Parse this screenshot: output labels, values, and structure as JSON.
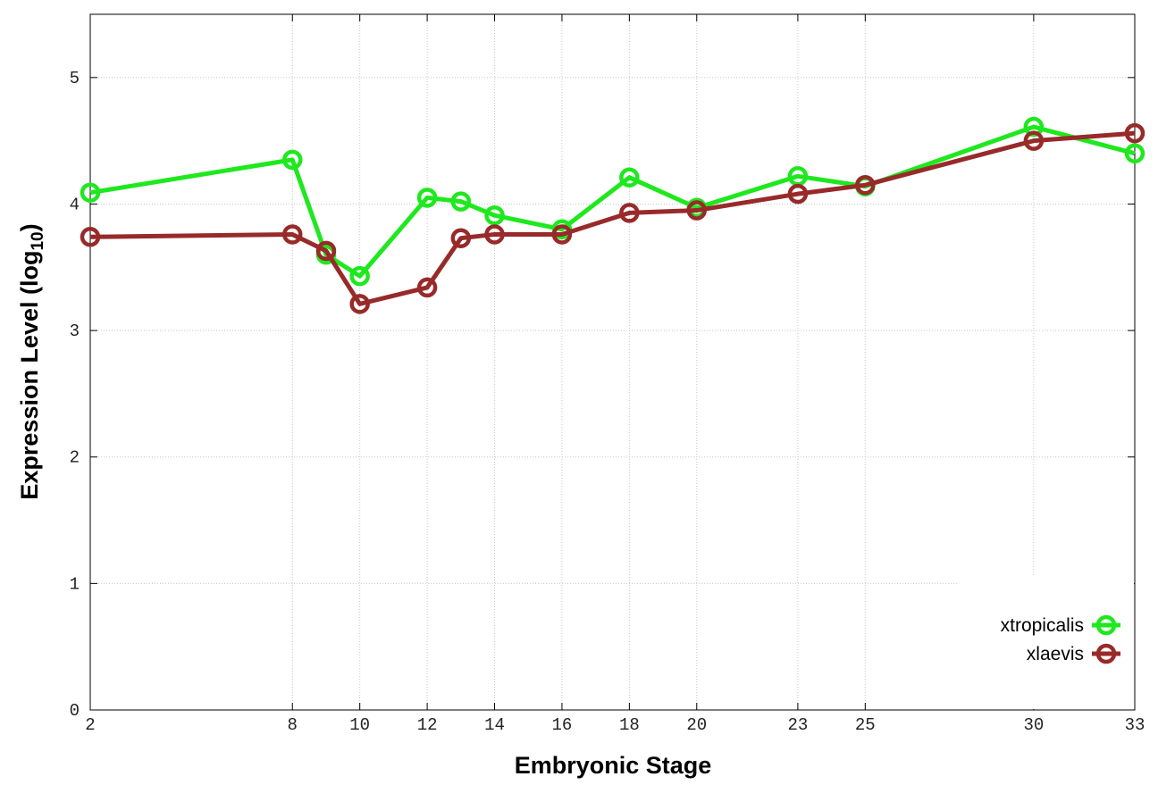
{
  "chart_data": {
    "type": "line",
    "x_label": "Embryonic Stage",
    "y_label": "Expression Level (log",
    "y_label_sub": "10",
    "y_label_end": ")",
    "x": [
      2,
      8,
      9,
      10,
      12,
      13,
      14,
      16,
      18,
      20,
      23,
      25,
      30,
      33
    ],
    "series": [
      {
        "name": "xtropicalis",
        "color": "#1ee81e",
        "values": [
          4.09,
          4.35,
          3.6,
          3.43,
          4.05,
          4.02,
          3.91,
          3.8,
          4.21,
          3.97,
          4.22,
          4.14,
          4.61,
          4.4
        ]
      },
      {
        "name": "xlaevis",
        "color": "#982a2a",
        "values": [
          3.74,
          3.76,
          3.63,
          3.21,
          3.34,
          3.73,
          3.76,
          3.76,
          3.93,
          3.95,
          4.08,
          4.15,
          4.5,
          4.56
        ]
      }
    ],
    "xlim": [
      2,
      33
    ],
    "xticks": [
      2,
      8,
      10,
      12,
      14,
      16,
      18,
      20,
      23,
      25,
      30,
      33
    ],
    "ylim": [
      0,
      5.5
    ],
    "yticks": [
      0,
      1,
      2,
      3,
      4,
      5
    ],
    "grid": true,
    "legend": "lower right"
  }
}
